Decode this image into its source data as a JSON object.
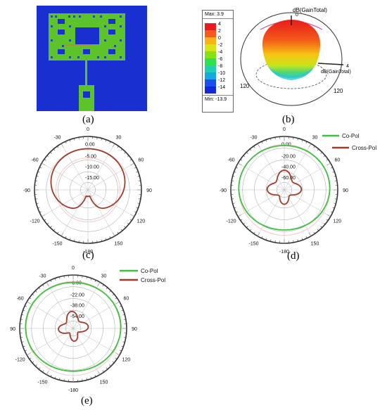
{
  "captions": {
    "a": "(a)",
    "b": "(b)",
    "c": "(c)",
    "d": "(d)",
    "e": "(e)"
  },
  "colorbar": {
    "max_label": "Max: 3.9",
    "min_label": "Min: -13.9",
    "ticks": [
      "4",
      "2",
      "0",
      "-2",
      "-4",
      "-6",
      "-8",
      "-10",
      "-12",
      "-14"
    ],
    "colors": [
      "#e81c1c",
      "#f45a1a",
      "#f8b414",
      "#d8e41a",
      "#86e012",
      "#30e050",
      "#20d0b0",
      "#18a8e0",
      "#1a50f0",
      "#1428d8"
    ]
  },
  "pattern3d": {
    "label_top": "dB(GainTotal)",
    "label_right": "dB(GainTotal)",
    "theta_top": "0",
    "theta_left": "120",
    "theta_right": "120",
    "marker_4": "4"
  },
  "polar_c": {
    "angle_labels": [
      "0",
      "30",
      "60",
      "90",
      "120",
      "150",
      "-180",
      "-150",
      "-120",
      "-90",
      "-60",
      "-30"
    ],
    "radial_labels": [
      "0.00",
      "-5.00",
      "-10.00",
      "-15.00"
    ]
  },
  "polar_d": {
    "angle_labels": [
      "0",
      "30",
      "60",
      "90",
      "120",
      "150",
      "-180",
      "-150",
      "-120",
      "-90",
      "-60",
      "-30"
    ],
    "radial_labels": [
      "0.00",
      "-20.00",
      "-40.00",
      "-60.00"
    ],
    "legend": [
      "Co-Pol",
      "Cross-Pol"
    ]
  },
  "polar_e": {
    "angle_labels": [
      "0",
      "30",
      "60",
      "90",
      "120",
      "150",
      "-180",
      "-150",
      "-120",
      "-90",
      "-60",
      "-30"
    ],
    "radial_labels": [
      "-6.00",
      "-22.00",
      "-38.00",
      "-54.00"
    ],
    "legend": [
      "Co-Pol",
      "Cross-Pol"
    ]
  },
  "colors": {
    "co_pol": "#3fbf3f",
    "cross_pol": "#a33a2a",
    "antenna_bg": "#1a2fcf",
    "antenna_patch": "#5cc32a"
  }
}
